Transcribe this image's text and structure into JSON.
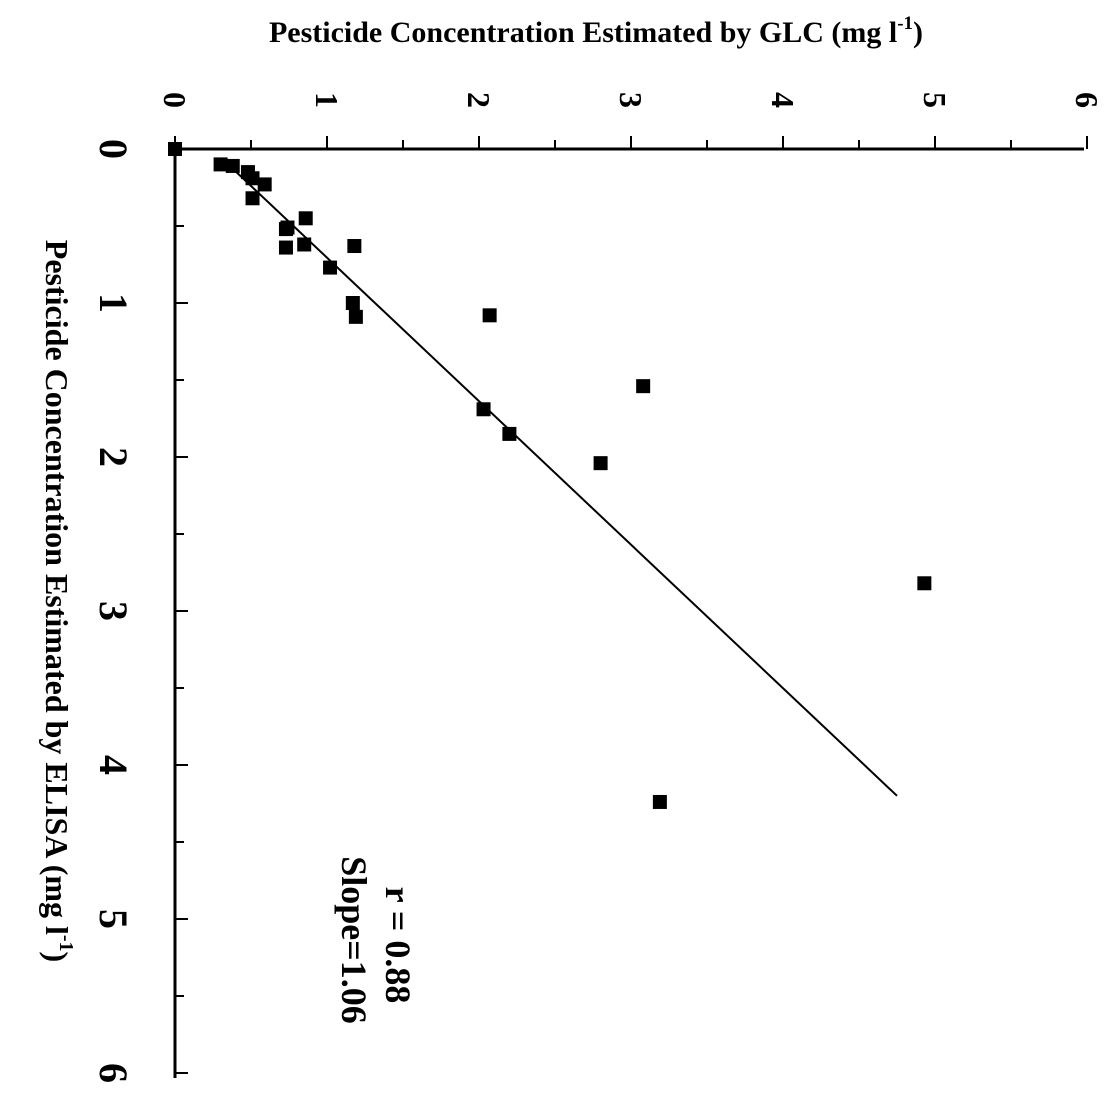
{
  "chart_data": {
    "type": "scatter",
    "title": "",
    "top_axis_label": "Pesticide Concentration Estimated by GLC (mg l",
    "top_axis_sup": "-1",
    "top_axis_close": ")",
    "left_axis_label": "Pesticide Concentration Estimated by ELISA (mg l",
    "left_axis_sup": "-1",
    "left_axis_close": ")",
    "top_ticks": [
      "0",
      "1",
      "2",
      "3",
      "4",
      "5",
      "6"
    ],
    "left_ticks": [
      "0",
      "1",
      "2",
      "3",
      "4",
      "5",
      "6"
    ],
    "glc_range": [
      0,
      6
    ],
    "elisa_range": [
      0,
      6
    ],
    "grid": false,
    "series": [
      {
        "points": [
          {
            "elisa": 0.0,
            "glc": 0.0
          },
          {
            "elisa": 0.1,
            "glc": 0.3
          },
          {
            "elisa": 0.11,
            "glc": 0.38
          },
          {
            "elisa": 0.15,
            "glc": 0.48
          },
          {
            "elisa": 0.19,
            "glc": 0.51
          },
          {
            "elisa": 0.23,
            "glc": 0.59
          },
          {
            "elisa": 0.32,
            "glc": 0.51
          },
          {
            "elisa": 0.45,
            "glc": 0.86
          },
          {
            "elisa": 0.51,
            "glc": 0.74
          },
          {
            "elisa": 0.52,
            "glc": 0.73
          },
          {
            "elisa": 0.62,
            "glc": 0.85
          },
          {
            "elisa": 0.63,
            "glc": 1.18
          },
          {
            "elisa": 0.64,
            "glc": 0.73
          },
          {
            "elisa": 0.77,
            "glc": 1.02
          },
          {
            "elisa": 1.0,
            "glc": 1.17
          },
          {
            "elisa": 1.08,
            "glc": 2.07
          },
          {
            "elisa": 1.09,
            "glc": 1.19
          },
          {
            "elisa": 1.54,
            "glc": 3.08
          },
          {
            "elisa": 1.69,
            "glc": 2.03
          },
          {
            "elisa": 1.85,
            "glc": 2.2
          },
          {
            "elisa": 2.04,
            "glc": 2.8
          },
          {
            "elisa": 2.82,
            "glc": 4.93
          },
          {
            "elisa": 4.24,
            "glc": 3.19
          }
        ]
      }
    ],
    "fit_line": {
      "start": {
        "elisa": 0.1,
        "glc": 0.35
      },
      "end": {
        "elisa": 4.2,
        "glc": 4.75
      }
    },
    "annotations": [
      "r = 0.88",
      "Slope=1.06"
    ]
  },
  "colors": {
    "ink": "#000000",
    "background": "#ffffff"
  }
}
